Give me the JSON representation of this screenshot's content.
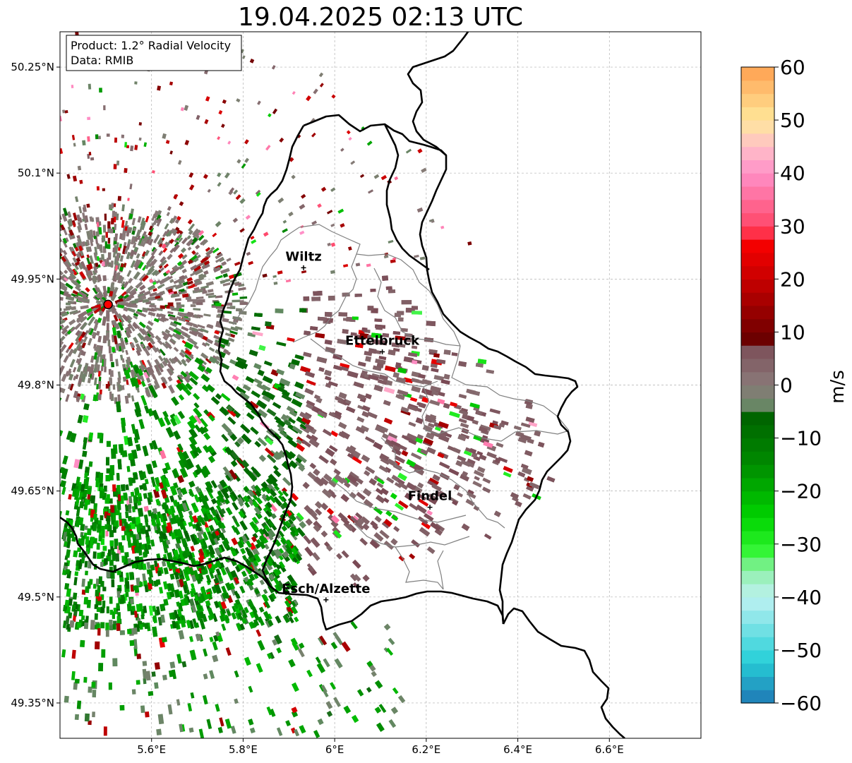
{
  "title": "19.04.2025 02:13 UTC",
  "info_box": {
    "product": "Product: 1.2° Radial Velocity",
    "data": "Data: RMIB"
  },
  "map": {
    "lon_range": [
      5.4,
      6.8
    ],
    "lat_range": [
      49.3,
      50.3
    ],
    "x_ticks": [
      {
        "value": 5.6,
        "label": "5.6°E"
      },
      {
        "value": 5.8,
        "label": "5.8°E"
      },
      {
        "value": 6.0,
        "label": "6°E"
      },
      {
        "value": 6.2,
        "label": "6.2°E"
      },
      {
        "value": 6.4,
        "label": "6.4°E"
      },
      {
        "value": 6.6,
        "label": "6.6°E"
      }
    ],
    "y_ticks": [
      {
        "value": 50.25,
        "label": "50.25°N"
      },
      {
        "value": 50.1,
        "label": "50.1°N"
      },
      {
        "value": 49.95,
        "label": "49.95°N"
      },
      {
        "value": 49.8,
        "label": "49.8°N"
      },
      {
        "value": 49.65,
        "label": "49.65°N"
      },
      {
        "value": 49.5,
        "label": "49.5°N"
      },
      {
        "value": 49.35,
        "label": "49.35°N"
      }
    ],
    "grid": true,
    "radar_site": {
      "lon": 5.505,
      "lat": 49.914
    },
    "cities": [
      {
        "name": "Wiltz",
        "lon": 5.932,
        "lat": 49.966
      },
      {
        "name": "Ettelbruck",
        "lon": 6.104,
        "lat": 49.847
      },
      {
        "name": "Findel",
        "lon": 6.208,
        "lat": 49.627
      },
      {
        "name": "Esch/Alzette",
        "lon": 5.981,
        "lat": 49.496
      }
    ]
  },
  "colorbar": {
    "label": "m/s",
    "min": -60,
    "max": 60,
    "ticks": [
      {
        "value": 60,
        "label": "60"
      },
      {
        "value": 50,
        "label": "50"
      },
      {
        "value": 40,
        "label": "40"
      },
      {
        "value": 30,
        "label": "30"
      },
      {
        "value": 20,
        "label": "20"
      },
      {
        "value": 10,
        "label": "10"
      },
      {
        "value": 0,
        "label": "0"
      },
      {
        "value": -10,
        "label": "−10"
      },
      {
        "value": -20,
        "label": "−20"
      },
      {
        "value": -30,
        "label": "−30"
      },
      {
        "value": -40,
        "label": "−40"
      },
      {
        "value": -50,
        "label": "−50"
      },
      {
        "value": -60,
        "label": "−60"
      }
    ],
    "stops": [
      {
        "v": -60,
        "color": "#1f77b4"
      },
      {
        "v": -52,
        "color": "#27d0d8"
      },
      {
        "v": -40,
        "color": "#bff2f2"
      },
      {
        "v": -35,
        "color": "#8fefaa"
      },
      {
        "v": -31,
        "color": "#2ef52e"
      },
      {
        "v": -25,
        "color": "#00d400"
      },
      {
        "v": -15,
        "color": "#008c00"
      },
      {
        "v": -6,
        "color": "#006400"
      },
      {
        "v": -5,
        "color": "#5e8a5e"
      },
      {
        "v": 0,
        "color": "#8a7a7a"
      },
      {
        "v": 8,
        "color": "#7a4a55"
      },
      {
        "v": 8.5,
        "color": "#6a0000"
      },
      {
        "v": 20,
        "color": "#c80000"
      },
      {
        "v": 28,
        "color": "#ff0000"
      },
      {
        "v": 29,
        "color": "#ff4060"
      },
      {
        "v": 40,
        "color": "#ff90c8"
      },
      {
        "v": 45,
        "color": "#ffc0c8"
      },
      {
        "v": 50,
        "color": "#ffe89a"
      },
      {
        "v": 60,
        "color": "#ffa050"
      }
    ]
  },
  "colors": {
    "border": "#000000",
    "district": "#808080",
    "grid": "#b0b0b0",
    "radar_marker": "#ff0000"
  }
}
